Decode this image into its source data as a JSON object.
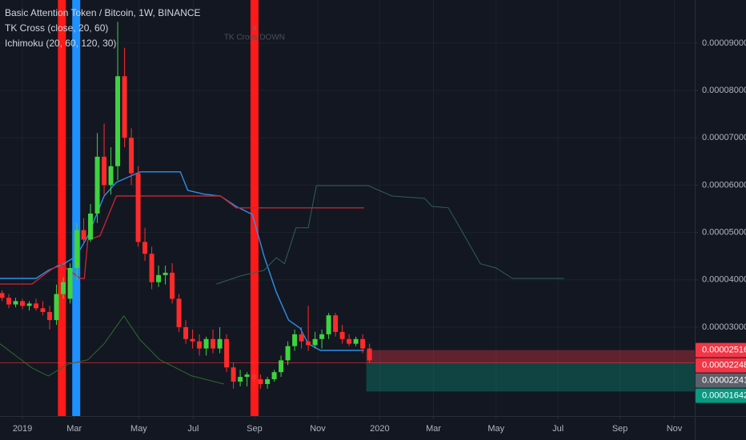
{
  "chart_data": {
    "type": "candlestick",
    "title": "Basic Attention Token / Bitcoin, 1W, BINANCE",
    "indicators": [
      "TK Cross (close, 20, 60)",
      "Ichimoku (20, 60, 120, 30)"
    ],
    "x": [
      -3,
      -2,
      -1,
      0,
      1,
      2,
      3,
      4,
      5,
      6,
      7,
      8,
      9,
      10,
      11,
      12,
      13,
      14,
      15,
      16,
      17,
      18,
      19,
      20,
      21,
      22,
      23,
      24,
      25,
      26,
      27,
      28,
      29,
      30,
      31,
      32,
      33,
      34,
      35,
      36,
      37,
      38,
      39,
      40,
      41,
      42,
      43,
      44,
      45,
      46,
      47,
      48,
      49,
      50,
      51
    ],
    "open": [
      3.72e-05,
      3.62e-05,
      3.48e-05,
      3.55e-05,
      3.45e-05,
      3.5e-05,
      3.4e-05,
      3.32e-05,
      3.15e-05,
      3.7e-05,
      3.6e-05,
      4.25e-05,
      5.05e-05,
      4.85e-05,
      5.4e-05,
      6.6e-05,
      6e-05,
      6.4e-05,
      8.3e-05,
      7e-05,
      6.25e-05,
      4.8e-05,
      4.55e-05,
      3.95e-05,
      4.1e-05,
      4.15e-05,
      3.6e-05,
      3e-05,
      2.75e-05,
      2.7e-05,
      2.55e-05,
      2.75e-05,
      2.55e-05,
      2.75e-05,
      2.15e-05,
      1.85e-05,
      1.95e-05,
      2e-05,
      1.9e-05,
      1.8e-05,
      1.9e-05,
      2.05e-05,
      2.3e-05,
      2.6e-05,
      2.85e-05,
      2.7e-05,
      2.62e-05,
      2.75e-05,
      2.85e-05,
      3.25e-05,
      2.9e-05,
      2.75e-05,
      2.65e-05,
      2.75e-05,
      2.55e-05
    ],
    "high": [
      3.78e-05,
      3.7e-05,
      3.62e-05,
      3.6e-05,
      3.55e-05,
      3.6e-05,
      3.55e-05,
      3.45e-05,
      3.9e-05,
      4.05e-05,
      4.35e-05,
      5.2e-05,
      5.3e-05,
      5.6e-05,
      7.1e-05,
      7.3e-05,
      6.8e-05,
      9.45e-05,
      8.9e-05,
      7.2e-05,
      6.4e-05,
      5.1e-05,
      4.7e-05,
      4.3e-05,
      4.3e-05,
      4.35e-05,
      3.7e-05,
      3.15e-05,
      2.95e-05,
      2.85e-05,
      2.8e-05,
      2.95e-05,
      3e-05,
      2.85e-05,
      2.25e-05,
      2.1e-05,
      2.05e-05,
      2.1e-05,
      2e-05,
      1.95e-05,
      2.1e-05,
      2.4e-05,
      2.7e-05,
      2.95e-05,
      3e-05,
      3.45e-05,
      2.9e-05,
      2.95e-05,
      3.3e-05,
      3.3e-05,
      3.05e-05,
      2.85e-05,
      2.8e-05,
      2.85e-05,
      2.65e-05
    ],
    "low": [
      3.55e-05,
      3.4e-05,
      3.42e-05,
      3.38e-05,
      3.35e-05,
      3.35e-05,
      3.25e-05,
      2.95e-05,
      3.05e-05,
      3.6e-05,
      3.5e-05,
      4e-05,
      4.75e-05,
      4.8e-05,
      5.2e-05,
      5.8e-05,
      5.8e-05,
      6.1e-05,
      6.8e-05,
      6e-05,
      4.7e-05,
      4.4e-05,
      3.8e-05,
      3.85e-05,
      3.9e-05,
      3.5e-05,
      2.9e-05,
      2.65e-05,
      2.55e-05,
      2.4e-05,
      2.4e-05,
      2.45e-05,
      2.45e-05,
      2.05e-05,
      1.7e-05,
      1.75e-05,
      1.75e-05,
      1.75e-05,
      1.7e-05,
      1.7e-05,
      1.85e-05,
      1.95e-05,
      2.2e-05,
      2.5e-05,
      2.55e-05,
      2.5e-05,
      2.55e-05,
      2.55e-05,
      2.75e-05,
      2.8e-05,
      2.65e-05,
      2.6e-05,
      2.6e-05,
      2.45e-05,
      2.25e-05
    ],
    "close": [
      3.62e-05,
      3.48e-05,
      3.55e-05,
      3.45e-05,
      3.5e-05,
      3.4e-05,
      3.32e-05,
      3.15e-05,
      3.7e-05,
      3.95e-05,
      4.25e-05,
      5.05e-05,
      4.85e-05,
      5.4e-05,
      6.6e-05,
      6e-05,
      6.4e-05,
      8.3e-05,
      7e-05,
      6.25e-05,
      4.8e-05,
      4.55e-05,
      3.95e-05,
      4.1e-05,
      4.15e-05,
      3.6e-05,
      3e-05,
      2.75e-05,
      2.7e-05,
      2.55e-05,
      2.75e-05,
      2.55e-05,
      2.75e-05,
      2.15e-05,
      1.85e-05,
      1.95e-05,
      2e-05,
      1.9e-05,
      1.8e-05,
      1.9e-05,
      2.05e-05,
      2.3e-05,
      2.6e-05,
      2.85e-05,
      2.7e-05,
      2.62e-05,
      2.75e-05,
      2.85e-05,
      3.25e-05,
      2.9e-05,
      2.75e-05,
      2.65e-05,
      2.75e-05,
      2.55e-05,
      2.3e-05
    ],
    "up_color": "#3fd33f",
    "down_color": "#ff2b2b",
    "lines": [
      {
        "color": "#2f8fe8",
        "width": 1.4,
        "x": [
          -3.3,
          2.0,
          3.8,
          6.1,
          7.9,
          9.6,
          10.8,
          12.0,
          13.8,
          17.3,
          23.2,
          24.3,
          26.7,
          29.1,
          31.4,
          33.8,
          35.5,
          37.3,
          39.1,
          40.8,
          42.0,
          43.8,
          50.2
        ],
        "values": [
          4.03e-05,
          4.03e-05,
          4.2e-05,
          4.34e-05,
          4.5e-05,
          4.92e-05,
          5.35e-05,
          5.77e-05,
          6.06e-05,
          6.28e-05,
          6.28e-05,
          5.89e-05,
          5.81e-05,
          5.77e-05,
          5.55e-05,
          5.38e-05,
          4.5e-05,
          3.74e-05,
          3.15e-05,
          2.98e-05,
          2.65e-05,
          2.51e-05,
          2.51e-05
        ]
      },
      {
        "color": "#c0272d",
        "width": 1.4,
        "x": [
          -3.3,
          1.4,
          3.8,
          5.5,
          8.5,
          9.1,
          9.6,
          11.4,
          13.8,
          29.1,
          31.4,
          50.2
        ],
        "values": [
          3.91e-05,
          3.91e-05,
          4.17e-05,
          4.34e-05,
          4.03e-05,
          4.03e-05,
          4.84e-05,
          4.93e-05,
          5.77e-05,
          5.77e-05,
          5.52e-05,
          5.52e-05
        ]
      },
      {
        "color": "#2e6b2e",
        "width": 1,
        "x": [
          -3.3,
          -0.9,
          1.4,
          3.8,
          6.7,
          9.6,
          12.0,
          14.9,
          17.3,
          20.2,
          24.9,
          29.6
        ],
        "values": [
          2.65e-05,
          2.39e-05,
          2.14e-05,
          1.97e-05,
          2.22e-05,
          2.31e-05,
          2.65e-05,
          3.24e-05,
          2.73e-05,
          2.31e-05,
          1.97e-05,
          1.8e-05
        ]
      },
      {
        "color": "#2f5f5a",
        "width": 1,
        "x": [
          28.5,
          32.0,
          35.5,
          37.3,
          38.5,
          40.2,
          42.0,
          43.2,
          50.8,
          54.3,
          59.1,
          60.2,
          62.6,
          64.3,
          67.3,
          69.6,
          72.0,
          79.6
        ],
        "values": [
          3.91e-05,
          4.08e-05,
          4.2e-05,
          4.47e-05,
          4.34e-05,
          5.1e-05,
          5.1e-05,
          5.99e-05,
          5.99e-05,
          5.77e-05,
          5.72e-05,
          5.55e-05,
          5.52e-05,
          5.1e-05,
          4.34e-05,
          4.25e-05,
          4.03e-05,
          4.03e-05
        ]
      }
    ],
    "signals": [
      {
        "x": 5.8,
        "color": "#ff1a1a"
      },
      {
        "x": 7.9,
        "color": "#1e90ff"
      },
      {
        "x": 34.1,
        "color": "#ff1a1a"
      }
    ],
    "annotation": {
      "marker": "x",
      "text": "TK Cross DOWN"
    },
    "levels": [
      {
        "value": 2.516e-05,
        "label": "0.00002516",
        "color": "#f23645"
      },
      {
        "value": 2.248e-05,
        "label": "0.00002248",
        "color": "#f23645"
      },
      {
        "value": 2.241e-05,
        "label": "0.00002241",
        "color": "#5d606b"
      },
      {
        "value": 1.642e-05,
        "label": "0.00001642",
        "color": "#089981"
      }
    ],
    "xlim": [
      -3.3,
      98.8
    ],
    "xticks": [
      {
        "value": 0,
        "label": "2019"
      },
      {
        "value": 7.6,
        "label": "Mar"
      },
      {
        "value": 17.1,
        "label": "May"
      },
      {
        "value": 25.1,
        "label": "Jul"
      },
      {
        "value": 34.1,
        "label": "Sep"
      },
      {
        "value": 43.4,
        "label": "Nov"
      },
      {
        "value": 52.5,
        "label": "2020"
      },
      {
        "value": 60.4,
        "label": "Mar"
      },
      {
        "value": 69.6,
        "label": "May"
      },
      {
        "value": 78.7,
        "label": "Jul"
      },
      {
        "value": 87.8,
        "label": "Sep"
      },
      {
        "value": 95.8,
        "label": "Nov"
      }
    ],
    "ylim": [
      1.124e-05,
      9.91e-05
    ],
    "yticks": [
      {
        "value": 3e-05,
        "label": "0.00003000"
      },
      {
        "value": 4e-05,
        "label": "0.00004000"
      },
      {
        "value": 5e-05,
        "label": "0.00005000"
      },
      {
        "value": 6e-05,
        "label": "0.00006000"
      },
      {
        "value": 7e-05,
        "label": "0.00007000"
      },
      {
        "value": 8e-05,
        "label": "0.00008000"
      },
      {
        "value": 9e-05,
        "label": "0.00009000"
      }
    ],
    "grid": true
  }
}
